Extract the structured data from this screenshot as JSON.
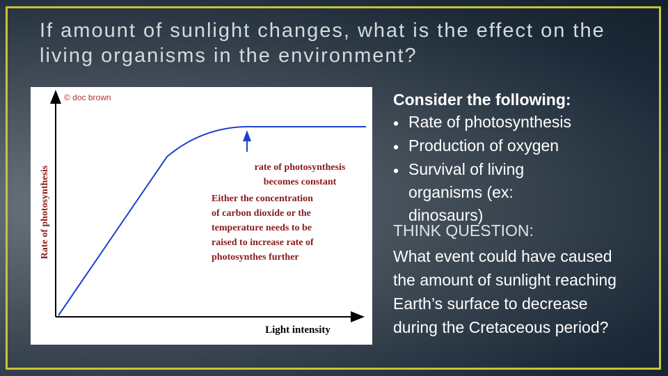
{
  "header": {
    "title": "If amount of sunlight changes, what is the effect on the living organisms in the environment?"
  },
  "figure": {
    "copyright": "© doc brown",
    "y_axis_label": "Rate of photosynthesis",
    "x_axis_label": "Light intensity",
    "annotation_1": [
      "rate of photosynthesis",
      "becomes constant"
    ],
    "annotation_2": [
      "Either the concentration",
      "of carbon dioxide or the",
      "temperature needs to be",
      "raised to increase rate of",
      "photosynthes further"
    ]
  },
  "consider": {
    "heading": "Consider the following:",
    "bullets": [
      "Rate of photosynthesis",
      "Production of oxygen",
      "Survival of living organisms (ex: dinosaurs)"
    ]
  },
  "question": {
    "heading": "THINK QUESTION:",
    "text": "What event could have caused the amount of sunlight reaching Earth’s surface to decrease during the Cretaceous period?"
  }
}
